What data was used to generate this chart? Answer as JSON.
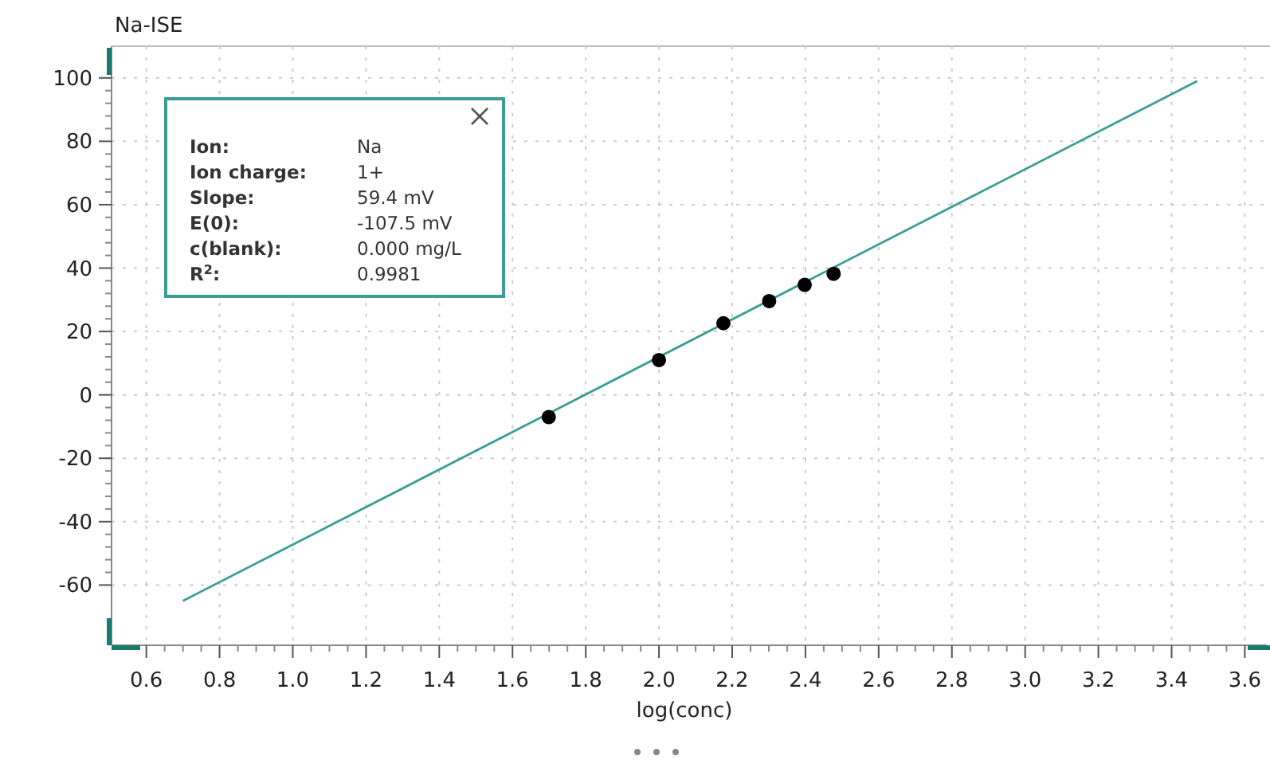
{
  "chart_data": {
    "type": "scatter",
    "title": "Na-ISE",
    "xlabel": "log(conc)",
    "xlim": [
      0.505,
      3.66
    ],
    "ylim": [
      -79,
      110
    ],
    "xticks": [
      {
        "value": 0.6,
        "label": "0.6"
      },
      {
        "value": 0.8,
        "label": "0.8"
      },
      {
        "value": 1.0,
        "label": "1.0"
      },
      {
        "value": 1.2,
        "label": "1.2"
      },
      {
        "value": 1.4,
        "label": "1.4"
      },
      {
        "value": 1.6,
        "label": "1.6"
      },
      {
        "value": 1.8,
        "label": "1.8"
      },
      {
        "value": 2.0,
        "label": "2.0"
      },
      {
        "value": 2.2,
        "label": "2.2"
      },
      {
        "value": 2.4,
        "label": "2.4"
      },
      {
        "value": 2.6,
        "label": "2.6"
      },
      {
        "value": 2.8,
        "label": "2.8"
      },
      {
        "value": 3.0,
        "label": "3.0"
      },
      {
        "value": 3.2,
        "label": "3.2"
      },
      {
        "value": 3.4,
        "label": "3.4"
      },
      {
        "value": 3.6,
        "label": "3.6"
      }
    ],
    "yticks": [
      -60,
      -40,
      -20,
      0,
      20,
      40,
      60,
      80,
      100
    ],
    "grid": true,
    "marker": "circle",
    "series": [
      {
        "type": "line",
        "color": "#3a9e94",
        "x": [
          0.7,
          3.47
        ],
        "values": [
          -65,
          99
        ],
        "marker": "none",
        "line_style": "solid"
      },
      {
        "color": "#000000",
        "x": [
          1.699,
          2.0,
          2.176,
          2.301,
          2.398,
          2.477
        ],
        "values": [
          -7,
          11,
          22.6,
          29.6,
          34.7,
          38.2
        ]
      }
    ],
    "annotations": [
      "Ion:",
      "Na",
      "Ion charge:",
      "1+",
      "Slope:",
      "59.4 mV",
      "E(0):",
      "-107.5 mV",
      "c(blank):",
      "0.000 mg/L",
      "R$^{2}$:",
      "0.9981"
    ]
  }
}
